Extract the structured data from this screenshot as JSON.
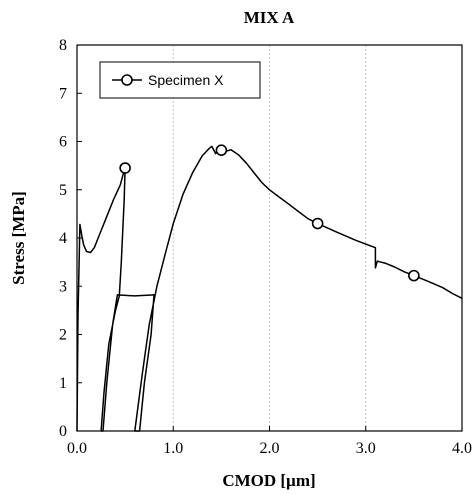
{
  "chart_data": {
    "type": "line",
    "title": "MIX A",
    "xlabel": "CMOD [µm]",
    "ylabel": "Stress [MPa]",
    "xlim": [
      0,
      4
    ],
    "ylim": [
      0,
      8
    ],
    "x_ticks": [
      "0.0",
      "1.0",
      "2.0",
      "3.0",
      "4.0"
    ],
    "y_ticks": [
      "0",
      "1",
      "2",
      "3",
      "4",
      "5",
      "6",
      "7",
      "8"
    ],
    "grid": "vertical dashed",
    "legend_position": "top-left",
    "series": [
      {
        "name": "Specimen X",
        "points": [
          [
            0.0,
            0.0
          ],
          [
            0.01,
            2.4
          ],
          [
            0.03,
            4.28
          ],
          [
            0.05,
            4.05
          ],
          [
            0.07,
            3.85
          ],
          [
            0.1,
            3.72
          ],
          [
            0.14,
            3.7
          ],
          [
            0.18,
            3.8
          ],
          [
            0.23,
            4.05
          ],
          [
            0.3,
            4.4
          ],
          [
            0.38,
            4.8
          ],
          [
            0.45,
            5.1
          ],
          [
            0.49,
            5.4
          ],
          [
            0.5,
            5.45
          ],
          [
            0.49,
            4.8
          ],
          [
            0.46,
            3.5
          ],
          [
            0.44,
            2.8
          ],
          [
            0.4,
            2.5
          ],
          [
            0.33,
            1.8
          ],
          [
            0.28,
            0.8
          ],
          [
            0.25,
            0.0
          ],
          [
            0.27,
            0.0
          ],
          [
            0.31,
            1.0
          ],
          [
            0.37,
            2.2
          ],
          [
            0.42,
            2.82
          ],
          [
            0.6,
            2.8
          ],
          [
            0.8,
            2.82
          ],
          [
            0.77,
            2.0
          ],
          [
            0.7,
            1.0
          ],
          [
            0.65,
            0.0
          ],
          [
            0.6,
            0.0
          ],
          [
            0.62,
            0.3
          ],
          [
            0.68,
            1.2
          ],
          [
            0.75,
            2.2
          ],
          [
            0.83,
            3.0
          ],
          [
            0.92,
            3.7
          ],
          [
            1.0,
            4.3
          ],
          [
            1.1,
            4.9
          ],
          [
            1.2,
            5.35
          ],
          [
            1.3,
            5.7
          ],
          [
            1.37,
            5.85
          ],
          [
            1.4,
            5.9
          ],
          [
            1.44,
            5.75
          ],
          [
            1.47,
            5.85
          ],
          [
            1.5,
            5.82
          ],
          [
            1.55,
            5.8
          ],
          [
            1.6,
            5.83
          ],
          [
            1.68,
            5.72
          ],
          [
            1.76,
            5.55
          ],
          [
            1.84,
            5.35
          ],
          [
            1.92,
            5.15
          ],
          [
            2.0,
            5.0
          ],
          [
            2.1,
            4.85
          ],
          [
            2.2,
            4.7
          ],
          [
            2.3,
            4.55
          ],
          [
            2.4,
            4.4
          ],
          [
            2.5,
            4.3
          ],
          [
            2.7,
            4.12
          ],
          [
            2.9,
            3.95
          ],
          [
            3.1,
            3.8
          ],
          [
            3.1,
            3.38
          ],
          [
            3.12,
            3.52
          ],
          [
            3.2,
            3.48
          ],
          [
            3.3,
            3.4
          ],
          [
            3.4,
            3.3
          ],
          [
            3.5,
            3.22
          ],
          [
            3.65,
            3.1
          ],
          [
            3.8,
            2.97
          ],
          [
            3.9,
            2.85
          ],
          [
            4.0,
            2.75
          ]
        ],
        "marker_points": [
          [
            0.5,
            5.45
          ],
          [
            1.5,
            5.82
          ],
          [
            2.5,
            4.3
          ],
          [
            3.5,
            3.22
          ]
        ]
      }
    ]
  }
}
